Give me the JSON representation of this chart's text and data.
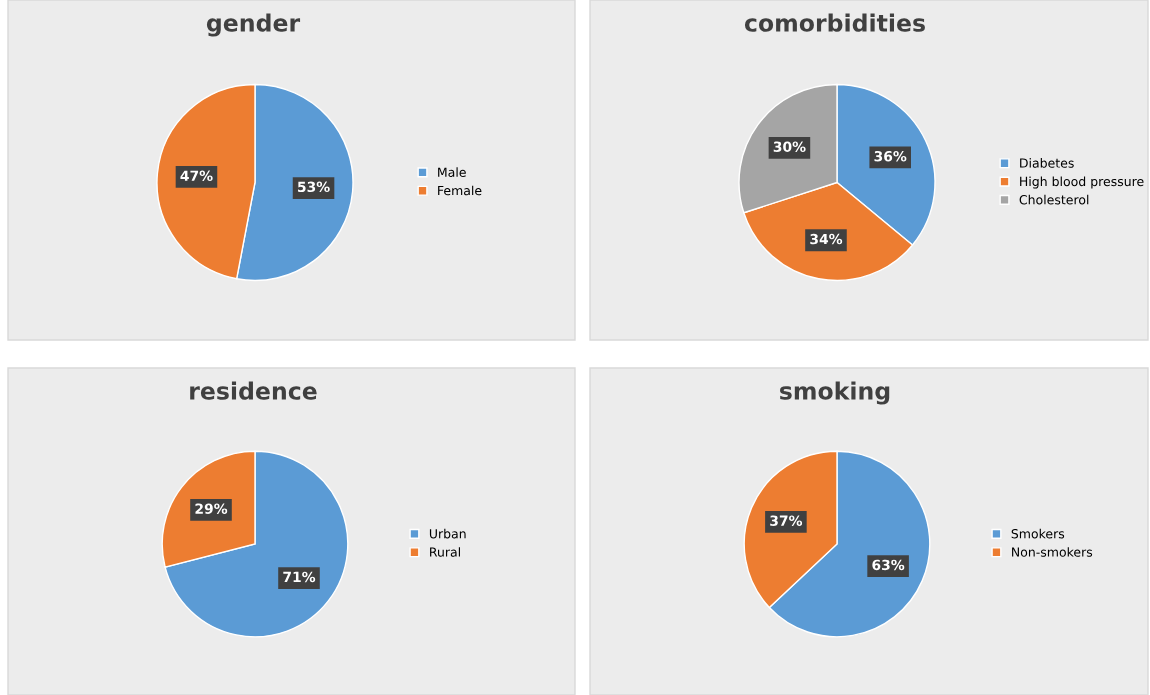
{
  "chart_data": [
    {
      "type": "pie",
      "title": "gender",
      "categories": [
        "Male",
        "Female"
      ],
      "values": [
        53,
        47
      ],
      "value_labels": [
        "53%",
        "47%"
      ],
      "colors": [
        "#5b9bd5",
        "#ed7d31"
      ],
      "legend": "right"
    },
    {
      "type": "pie",
      "title": "comorbidities",
      "categories": [
        "Diabetes",
        "High blood pressure",
        "Cholesterol"
      ],
      "values": [
        36,
        34,
        30
      ],
      "value_labels": [
        "36%",
        "34%",
        "30%"
      ],
      "colors": [
        "#5b9bd5",
        "#ed7d31",
        "#a5a5a5"
      ],
      "legend": "right"
    },
    {
      "type": "pie",
      "title": "residence",
      "categories": [
        "Urban",
        "Rural"
      ],
      "values": [
        71,
        29
      ],
      "value_labels": [
        "71%",
        "29%"
      ],
      "colors": [
        "#5b9bd5",
        "#ed7d31"
      ],
      "legend": "right"
    },
    {
      "type": "pie",
      "title": "smoking",
      "categories": [
        "Smokers",
        "Non-smokers"
      ],
      "values": [
        63,
        37
      ],
      "value_labels": [
        "63%",
        "37%"
      ],
      "colors": [
        "#5b9bd5",
        "#ed7d31"
      ],
      "legend": "right"
    }
  ]
}
